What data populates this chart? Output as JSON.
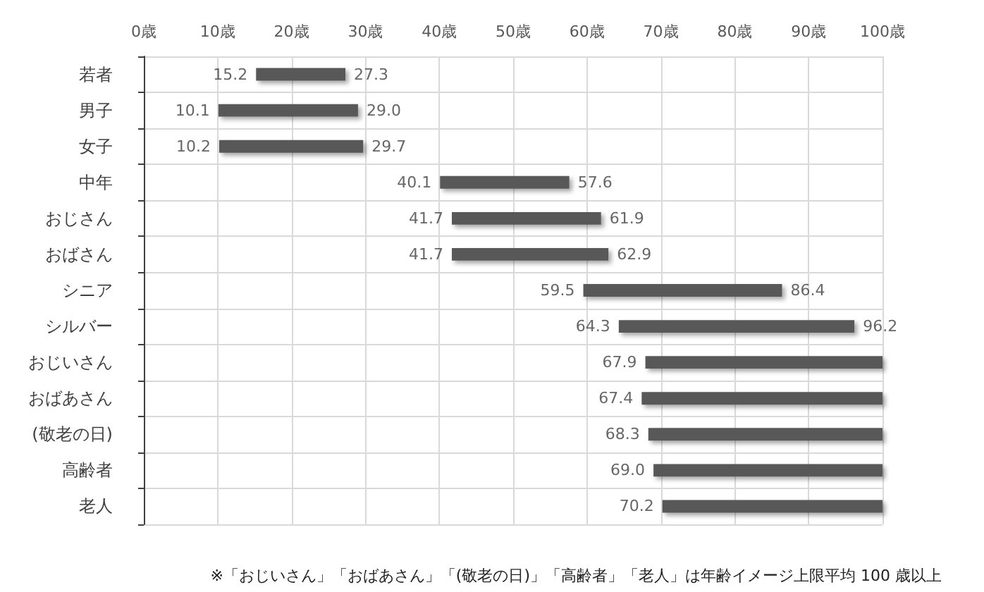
{
  "chart_data": {
    "type": "bar",
    "orientation": "horizontal",
    "categories": [
      "若者",
      "男子",
      "女子",
      "中年",
      "おじさん",
      "おばさん",
      "シニア",
      "シルバー",
      "おじいさん",
      "おばあさん",
      "(敬老の日)",
      "高齢者",
      "老人"
    ],
    "base": [
      15.2,
      10.1,
      10.2,
      40.1,
      41.7,
      41.7,
      59.5,
      64.3,
      67.9,
      67.4,
      68.3,
      69.0,
      70.2
    ],
    "values": [
      12.1,
      18.9,
      19.5,
      17.5,
      20.2,
      21.2,
      26.9,
      31.9,
      32.1,
      32.6,
      31.7,
      31.0,
      29.8
    ],
    "color": "#595959",
    "xlim": [
      0,
      100
    ],
    "xticks": [
      {
        "value": 0,
        "label": "0歳"
      },
      {
        "value": 10,
        "label": "10歳"
      },
      {
        "value": 20,
        "label": "20歳"
      },
      {
        "value": 30,
        "label": "30歳"
      },
      {
        "value": 40,
        "label": "40歳"
      },
      {
        "value": 50,
        "label": "50歳"
      },
      {
        "value": 60,
        "label": "60歳"
      },
      {
        "value": 70,
        "label": "70歳"
      },
      {
        "value": 80,
        "label": "80歳"
      },
      {
        "value": 90,
        "label": "90歳"
      },
      {
        "value": 100,
        "label": "100歳"
      }
    ],
    "grid": true,
    "annotations": [
      {
        "text": "15.2",
        "x": 15.2,
        "y": "若者"
      },
      {
        "text": "27.3",
        "x": 27.3,
        "y": "若者"
      },
      {
        "text": "10.1",
        "x": 10.1,
        "y": "男子"
      },
      {
        "text": "29.0",
        "x": 29.0,
        "y": "男子"
      },
      {
        "text": "10.2",
        "x": 10.2,
        "y": "女子"
      },
      {
        "text": "29.7",
        "x": 29.7,
        "y": "女子"
      },
      {
        "text": "40.1",
        "x": 40.1,
        "y": "中年"
      },
      {
        "text": "57.6",
        "x": 57.6,
        "y": "中年"
      },
      {
        "text": "41.7",
        "x": 41.7,
        "y": "おじさん"
      },
      {
        "text": "61.9",
        "x": 61.9,
        "y": "おじさん"
      },
      {
        "text": "41.7",
        "x": 41.7,
        "y": "おばさん"
      },
      {
        "text": "62.9",
        "x": 62.9,
        "y": "おばさん"
      },
      {
        "text": "59.5",
        "x": 59.5,
        "y": "シニア"
      },
      {
        "text": "86.4",
        "x": 86.4,
        "y": "シニア"
      },
      {
        "text": "64.3",
        "x": 64.3,
        "y": "シルバー"
      },
      {
        "text": "96.2",
        "x": 96.2,
        "y": "シルバー"
      },
      {
        "text": "67.9",
        "x": 67.9,
        "y": "おじいさん"
      },
      {
        "text": "67.4",
        "x": 67.4,
        "y": "おばあさん"
      },
      {
        "text": "68.3",
        "x": 68.3,
        "y": "(敬老の日)"
      },
      {
        "text": "69.0",
        "x": 69.0,
        "y": "高齢者"
      },
      {
        "text": "70.2",
        "x": 70.2,
        "y": "老人"
      },
      "※「おじいさん」「おばあさん」「(敬老の日)」「高齢者」「老人」は年齢イメージ上限平均 100 歳以上"
    ]
  }
}
